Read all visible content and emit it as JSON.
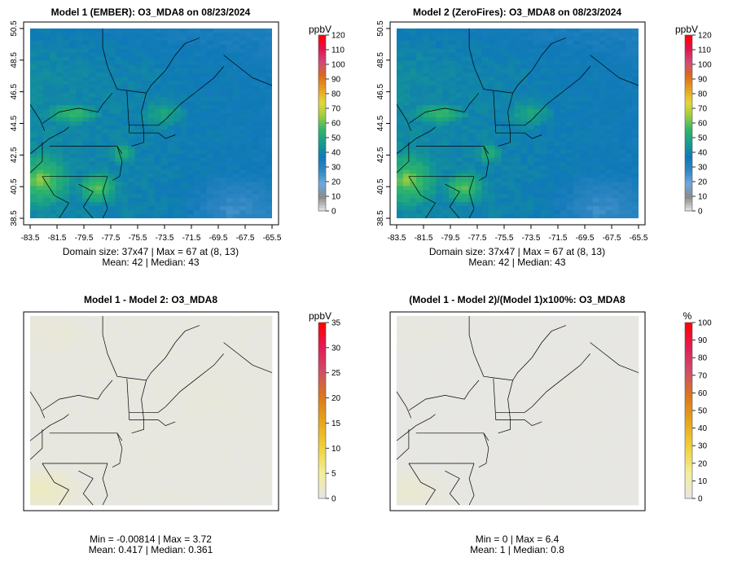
{
  "chart_data": [
    {
      "type": "heatmap",
      "id": "p1",
      "title": "Model 1 (EMBER): O3_MDA8 on 08/23/2024",
      "x_ticks": [
        "-83.5",
        "-81.5",
        "-79.5",
        "-77.5",
        "-75.5",
        "-73.5",
        "-71.5",
        "-69.5",
        "-67.5",
        "-65.5"
      ],
      "y_ticks": [
        "38.5",
        "40.5",
        "42.5",
        "44.5",
        "46.5",
        "48.5",
        "50.5"
      ],
      "xlim": [
        -83.5,
        -65.5
      ],
      "ylim": [
        38.5,
        50.5
      ],
      "grid": "37x47",
      "colorbar": {
        "unit": "ppbV",
        "ticks": [
          "0",
          "10",
          "20",
          "30",
          "40",
          "50",
          "60",
          "70",
          "80",
          "90",
          "100",
          "110",
          "120"
        ],
        "range": [
          0,
          120
        ],
        "colors": [
          "#e6e6e6",
          "#8a8a8a",
          "#6fa8dc",
          "#2e86c1",
          "#0f79b8",
          "#159c8c",
          "#2fb56a",
          "#9ccc3f",
          "#e4d63a",
          "#e8a020",
          "#d96a1c",
          "#cf4a7a",
          "#e0144a",
          "#ff0000"
        ]
      },
      "stats_line1": "Domain size: 37x47 | Max = 67 at (8, 13)",
      "stats_line2": "Mean: 42 |  Median: 43",
      "map_style": "ozone"
    },
    {
      "type": "heatmap",
      "id": "p2",
      "title": "Model 2 (ZeroFires): O3_MDA8 on 08/23/2024",
      "x_ticks": [
        "-83.5",
        "-81.5",
        "-79.5",
        "-77.5",
        "-75.5",
        "-73.5",
        "-71.5",
        "-69.5",
        "-67.5",
        "-65.5"
      ],
      "y_ticks": [
        "38.5",
        "40.5",
        "42.5",
        "44.5",
        "46.5",
        "48.5",
        "50.5"
      ],
      "xlim": [
        -83.5,
        -65.5
      ],
      "ylim": [
        38.5,
        50.5
      ],
      "grid": "37x47",
      "colorbar": {
        "unit": "ppbV",
        "ticks": [
          "0",
          "10",
          "20",
          "30",
          "40",
          "50",
          "60",
          "70",
          "80",
          "90",
          "100",
          "110",
          "120"
        ],
        "range": [
          0,
          120
        ],
        "colors": [
          "#e6e6e6",
          "#8a8a8a",
          "#6fa8dc",
          "#2e86c1",
          "#0f79b8",
          "#159c8c",
          "#2fb56a",
          "#9ccc3f",
          "#e4d63a",
          "#e8a020",
          "#d96a1c",
          "#cf4a7a",
          "#e0144a",
          "#ff0000"
        ]
      },
      "stats_line1": "Domain size: 37x47 | Max = 67 at (8, 13)",
      "stats_line2": "Mean: 42 |  Median: 43",
      "map_style": "ozone"
    },
    {
      "type": "heatmap",
      "id": "p3",
      "title": "Model 1 - Model 2: O3_MDA8",
      "colorbar": {
        "unit": "ppbV",
        "ticks": [
          "0",
          "5",
          "10",
          "15",
          "20",
          "25",
          "30",
          "35"
        ],
        "range": [
          0,
          35
        ],
        "colors": [
          "#e6e6e6",
          "#f3ee9a",
          "#f0d23c",
          "#e6a81e",
          "#db7a1a",
          "#cf5066",
          "#e01e55",
          "#ff0000"
        ]
      },
      "stats_line1": "Min = -0.00814 | Max = 3.72",
      "stats_line2": "Mean: 0.417 |  Median: 0.361",
      "map_style": "diff"
    },
    {
      "type": "heatmap",
      "id": "p4",
      "title": "(Model 1 - Model 2)/(Model 1)x100%: O3_MDA8",
      "colorbar": {
        "unit": "%",
        "ticks": [
          "0",
          "10",
          "20",
          "30",
          "40",
          "50",
          "60",
          "70",
          "80",
          "90",
          "100"
        ],
        "range": [
          0,
          100
        ],
        "colors": [
          "#e6e6e6",
          "#f3ee9a",
          "#f0d23c",
          "#e6a81e",
          "#db7a1a",
          "#cf5066",
          "#e01e55",
          "#ff0000"
        ]
      },
      "stats_line1": "Min = 0 | Max = 6.4",
      "stats_line2": "Mean: 1 |  Median: 0.8",
      "map_style": "pct"
    }
  ]
}
